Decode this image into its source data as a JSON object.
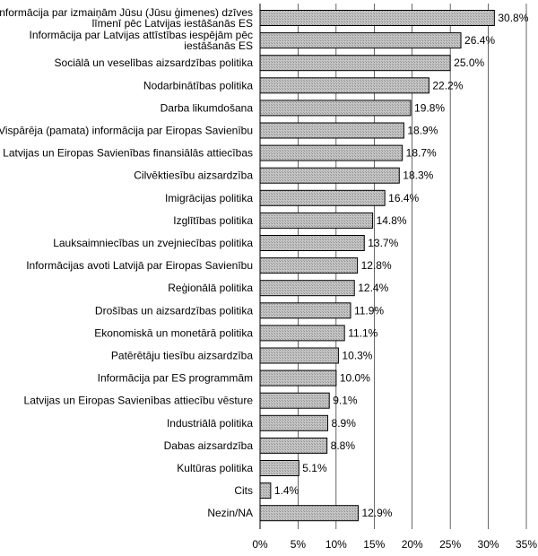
{
  "chart_data": {
    "type": "bar",
    "orientation": "horizontal",
    "title": "",
    "xlabel": "",
    "ylabel": "",
    "xlim": [
      0,
      35
    ],
    "xticks": [
      0,
      5,
      10,
      15,
      20,
      25,
      30,
      35
    ],
    "tick_suffix": "%",
    "value_suffix": "%",
    "grid": true,
    "categories": [
      [
        "Informācija par izmaiņām Jūsu (Jūsu ģimenes) dzīves",
        "līmenī pēc Latvijas iestāšanās ES"
      ],
      [
        "Informācija par Latvijas attīstības iespējām pēc",
        "iestāšanās ES"
      ],
      [
        "Sociālā un veselības aizsardzības politika"
      ],
      [
        "Nodarbinātības politika"
      ],
      [
        "Darba likumdošana"
      ],
      [
        "Vispārēja (pamata) informācija par Eiropas Savienību"
      ],
      [
        "Latvijas un Eiropas Savienības finansiālās attiecības"
      ],
      [
        "Cilvēktiesību aizsardzība"
      ],
      [
        "Imigrācijas politika"
      ],
      [
        "Izglītības politika"
      ],
      [
        "Lauksaimniecības un zvejniecības politika"
      ],
      [
        "Informācijas avoti Latvijā par Eiropas Savienību"
      ],
      [
        "Reģionālā politika"
      ],
      [
        "Drošības un aizsardzības politika"
      ],
      [
        "Ekonomiskā un monetārā politika"
      ],
      [
        "Patērētāju tiesību aizsardzība"
      ],
      [
        "Informācija par ES programmām"
      ],
      [
        "Latvijas un Eiropas Savienības attiecību vēsture"
      ],
      [
        "Industriālā politika"
      ],
      [
        "Dabas aizsardzība"
      ],
      [
        "Kultūras politika"
      ],
      [
        "Cits"
      ],
      [
        "Nezin/NA"
      ]
    ],
    "values": [
      30.8,
      26.4,
      25.0,
      22.2,
      19.8,
      18.9,
      18.7,
      18.3,
      16.4,
      14.8,
      13.7,
      12.8,
      12.4,
      11.9,
      11.1,
      10.3,
      10.0,
      9.1,
      8.9,
      8.8,
      5.1,
      1.4,
      12.9
    ]
  }
}
